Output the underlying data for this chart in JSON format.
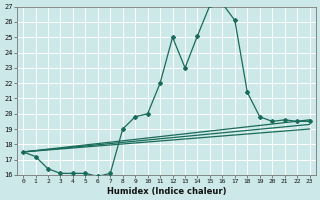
{
  "xlabel": "Humidex (Indice chaleur)",
  "ylabel": "",
  "bg_color": "#cce8e8",
  "grid_color": "#b0d0d0",
  "line_color": "#1a6b5a",
  "xmin": -0.5,
  "xmax": 23.5,
  "ymin": 16,
  "ymax": 27,
  "series": {
    "main": {
      "x": [
        0,
        1,
        2,
        3,
        4,
        5,
        6,
        7,
        8,
        9,
        10,
        11,
        12,
        13,
        14,
        15,
        16,
        17,
        18,
        19,
        20,
        21,
        22,
        23
      ],
      "y": [
        17.5,
        17.2,
        16.4,
        16.1,
        16.1,
        16.1,
        15.9,
        16.1,
        19.0,
        19.8,
        20.0,
        22.0,
        25.0,
        23.0,
        25.1,
        27.1,
        27.2,
        26.1,
        21.4,
        19.8,
        19.5,
        19.6,
        19.5,
        19.5
      ]
    },
    "band1": {
      "x": [
        0,
        23
      ],
      "y": [
        17.5,
        19.6
      ]
    },
    "band2": {
      "x": [
        0,
        23
      ],
      "y": [
        17.5,
        19.3
      ]
    },
    "band3": {
      "x": [
        0,
        23
      ],
      "y": [
        17.5,
        19.0
      ]
    }
  }
}
